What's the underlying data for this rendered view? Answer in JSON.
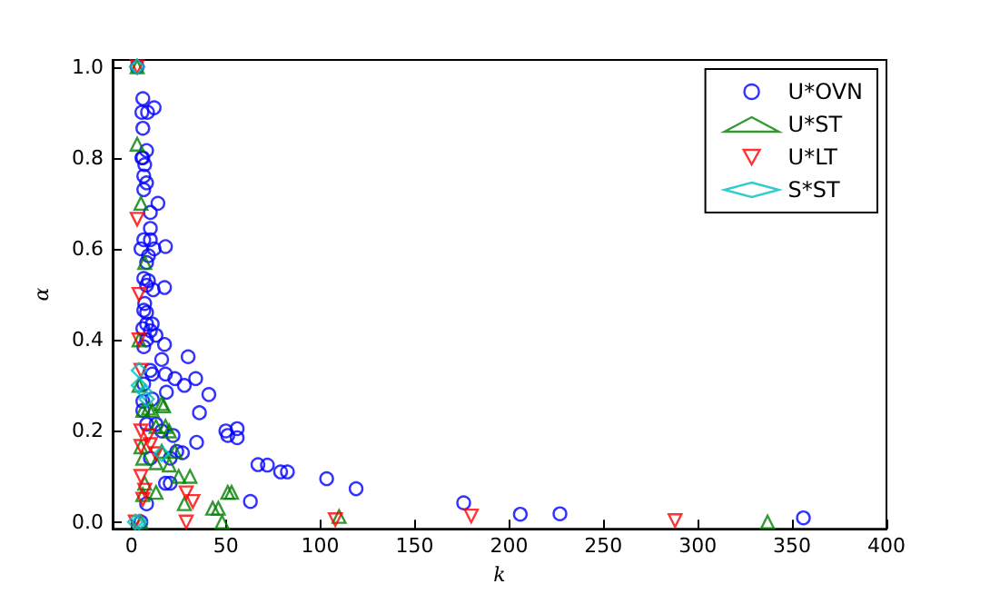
{
  "chart_data": {
    "type": "scatter",
    "xlabel": "k",
    "ylabel": "α",
    "xlim": [
      -10,
      400
    ],
    "ylim": [
      -0.015,
      1.015
    ],
    "xticks": [
      0,
      50,
      100,
      150,
      200,
      250,
      300,
      350,
      400
    ],
    "yticks": [
      {
        "value": 0,
        "label": "0.0"
      },
      {
        "value": 0.2,
        "label": "0.2"
      },
      {
        "value": 0.4,
        "label": "0.4"
      },
      {
        "value": 0.6,
        "label": "0.6"
      },
      {
        "value": 0.8,
        "label": "0.8"
      },
      {
        "value": 1,
        "label": "1.0"
      }
    ],
    "grid": false,
    "legend": "top right",
    "series": [
      {
        "name": "U*OVN",
        "color": "#0000ff",
        "marker": "circle",
        "x": [
          3,
          6,
          5.5,
          8.5,
          12,
          6,
          8,
          5.5,
          6,
          7,
          6.5,
          8,
          6.5,
          14,
          10,
          10,
          6.5,
          10,
          5,
          12,
          18,
          9,
          8,
          6.5,
          9,
          8,
          11.5,
          17.5,
          7,
          6.5,
          8,
          8,
          11,
          6,
          10,
          13,
          8,
          17.5,
          6.5,
          16,
          30,
          10,
          11,
          18,
          23,
          34,
          6.5,
          18.5,
          41,
          28,
          6,
          11,
          36,
          6,
          8,
          13,
          16,
          22,
          27,
          10,
          20.5,
          24,
          18,
          20.5,
          34.5,
          50,
          56,
          51,
          56,
          67,
          72,
          79,
          82.6,
          63,
          8,
          5,
          103.4,
          119,
          176,
          206,
          227,
          356
        ],
        "values": [
          1.0,
          0.93,
          0.9,
          0.9,
          0.91,
          0.865,
          0.816,
          0.8,
          0.8,
          0.785,
          0.76,
          0.745,
          0.73,
          0.7,
          0.68,
          0.645,
          0.62,
          0.62,
          0.6,
          0.6,
          0.605,
          0.585,
          0.57,
          0.535,
          0.53,
          0.52,
          0.51,
          0.515,
          0.48,
          0.465,
          0.46,
          0.435,
          0.435,
          0.425,
          0.42,
          0.41,
          0.4,
          0.39,
          0.385,
          0.357,
          0.363,
          0.333,
          0.325,
          0.325,
          0.315,
          0.315,
          0.303,
          0.285,
          0.28,
          0.3,
          0.265,
          0.27,
          0.24,
          0.245,
          0.215,
          0.215,
          0.2,
          0.19,
          0.152,
          0.14,
          0.14,
          0.155,
          0.085,
          0.085,
          0.175,
          0.2,
          0.205,
          0.19,
          0.185,
          0.126,
          0.125,
          0.11,
          0.11,
          0.045,
          0.04,
          0.0,
          0.095,
          0.073,
          0.042,
          0.017,
          0.018,
          0.009
        ]
      },
      {
        "name": "U*ST",
        "color": "#008000",
        "marker": "triangle",
        "x": [
          3,
          3,
          5,
          7,
          4,
          4,
          9,
          6,
          11,
          16,
          17,
          18,
          13,
          20,
          5,
          6,
          13,
          16,
          23,
          20,
          25,
          31,
          7,
          6,
          13,
          28,
          43,
          48,
          51,
          5,
          53,
          46,
          110,
          337
        ],
        "values": [
          1.0,
          0.83,
          0.7,
          0.57,
          0.4,
          0.3,
          0.25,
          0.245,
          0.245,
          0.26,
          0.255,
          0.21,
          0.21,
          0.2,
          0.165,
          0.14,
          0.13,
          0.155,
          0.155,
          0.125,
          0.1,
          0.1,
          0.085,
          0.06,
          0.065,
          0.04,
          0.03,
          0.0,
          0.065,
          0.0,
          0.065,
          0.03,
          0.012,
          0.0
        ]
      },
      {
        "name": "U*LT",
        "color": "#ff0000",
        "marker": "triangle-down",
        "x": [
          3,
          3,
          4,
          4,
          5,
          5,
          5,
          9,
          10,
          13,
          5,
          7,
          6,
          29,
          32.5,
          29,
          2,
          108,
          180,
          288
        ],
        "values": [
          1.0,
          0.665,
          0.5,
          0.4,
          0.333,
          0.2,
          0.166,
          0.19,
          0.17,
          0.15,
          0.1,
          0.07,
          0.05,
          0.064,
          0.045,
          0.0,
          0.0,
          0.005,
          0.013,
          0.003
        ]
      },
      {
        "name": "S*ST",
        "color": "#00bfbf",
        "marker": "diamond",
        "x": [
          3,
          4,
          4,
          7,
          8,
          16,
          2,
          4
        ],
        "values": [
          1.0,
          0.333,
          0.3,
          0.285,
          0.27,
          0.15,
          0.0,
          0.0
        ]
      }
    ]
  }
}
